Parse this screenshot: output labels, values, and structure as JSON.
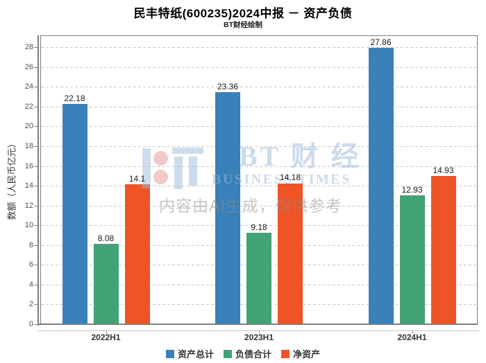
{
  "chart_data": {
    "type": "bar",
    "title": "民丰特纸(600235)2024中报 － 资产负债",
    "subtitle": "BT财经绘制",
    "categories": [
      "2022H1",
      "2023H1",
      "2024H1"
    ],
    "series": [
      {
        "name": "资产总计",
        "color": "#3a80b9",
        "values": [
          22.18,
          23.36,
          27.86
        ]
      },
      {
        "name": "负债合计",
        "color": "#42a376",
        "values": [
          8.08,
          9.18,
          12.93
        ]
      },
      {
        "name": "净资产",
        "color": "#ee5426",
        "values": [
          14.1,
          14.18,
          14.93
        ]
      }
    ],
    "value_labels": [
      "22.18",
      "8.08",
      "14.1",
      "23.36",
      "9.18",
      "14.18",
      "27.86",
      "12.93",
      "14.93"
    ],
    "xlabel": "",
    "ylabel": "数额（人民币亿元）",
    "y_ticks": [
      0,
      2,
      4,
      6,
      8,
      10,
      12,
      14,
      16,
      18,
      20,
      22,
      24,
      26,
      28
    ],
    "ylim": [
      0,
      29.2
    ],
    "grid": "horizontal-dashed",
    "legend_position": "bottom"
  },
  "watermark": {
    "brand_cn": "BT 财 经",
    "brand_en": "BUSINESS TIMES",
    "disclaimer": "内容由AI生成，仅供参考",
    "colors": {
      "logo_blue": "#9dbcda",
      "logo_pink": "#e59595",
      "text_blue": "#9ab8d8",
      "text_gray": "#8c8c8c"
    }
  }
}
